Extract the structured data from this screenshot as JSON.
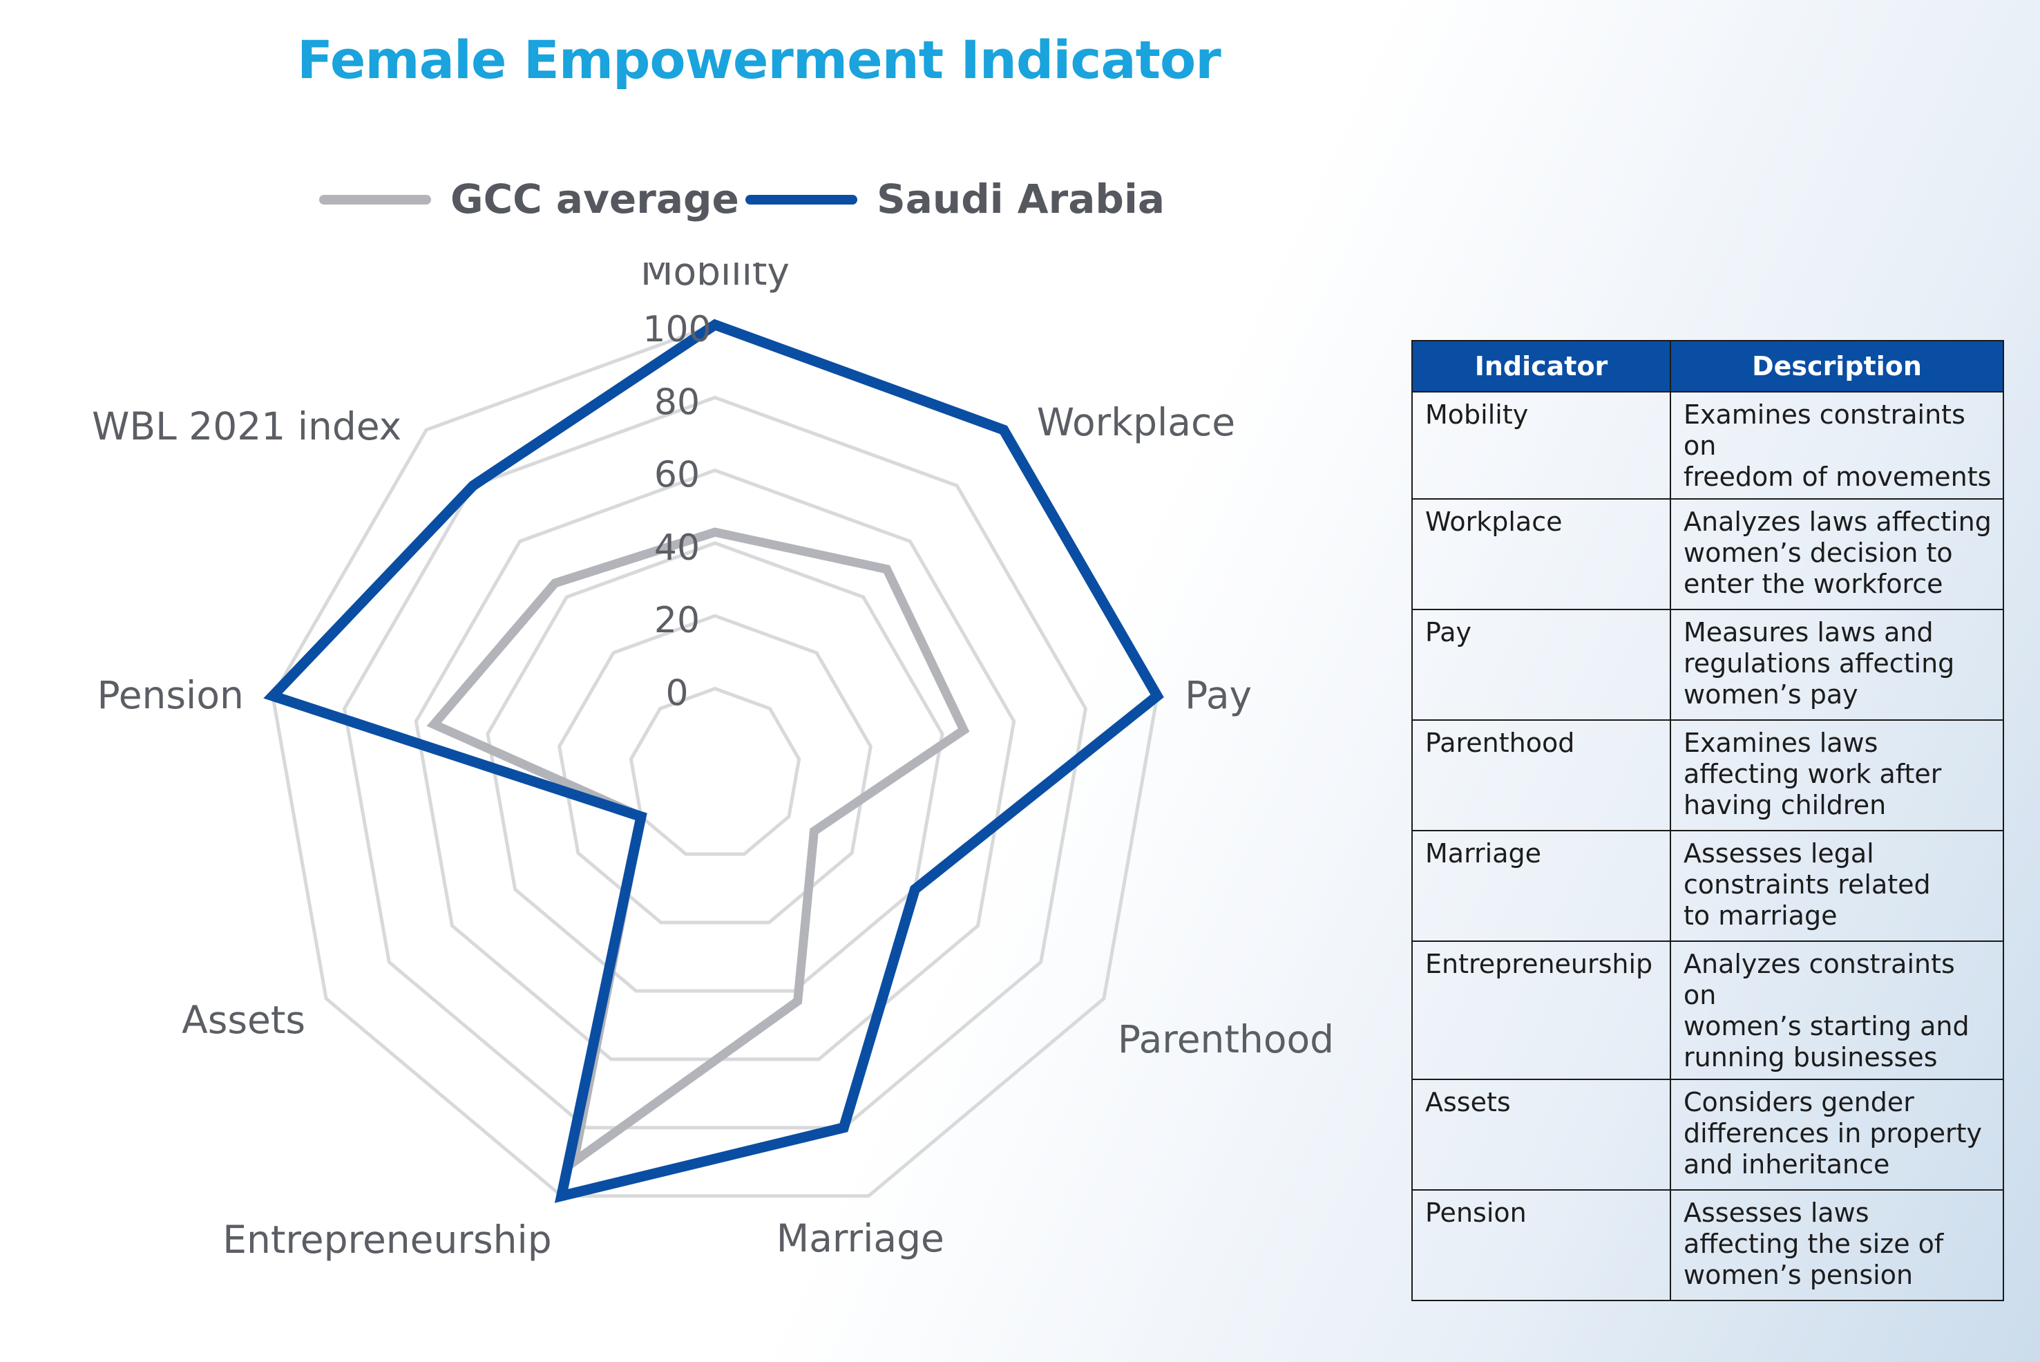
{
  "title": "Female Empowerment Indicator",
  "legend": [
    {
      "label": "GCC average",
      "color": "#b3b4b9"
    },
    {
      "label": "Saudi Arabia",
      "color": "#0a4ea3"
    }
  ],
  "chart_data": {
    "type": "radar",
    "title": "Female Empowerment Indicator",
    "axes": [
      "Mobility",
      "Workplace",
      "Pay",
      "Parenthood",
      "Marriage",
      "Entrepreneurship",
      "Assets",
      "Pension",
      "WBL 2021 index"
    ],
    "ticks": [
      "0",
      "20",
      "40",
      "60",
      "80",
      "100"
    ],
    "range": [
      0,
      100
    ],
    "grid": true,
    "legend_position": "top",
    "series": [
      {
        "name": "GCC average",
        "color": "#b3b4b9",
        "values": [
          43,
          50,
          46,
          8,
          43,
          90,
          0,
          55,
          45
        ]
      },
      {
        "name": "Saudi Arabia",
        "color": "#0a4ea3",
        "values": [
          100,
          100,
          100,
          40,
          80,
          100,
          0,
          100,
          80
        ]
      }
    ]
  },
  "table": {
    "headers": [
      "Indicator",
      "Description"
    ],
    "rows": [
      {
        "name": "Mobility",
        "lines": [
          "Examines constraints on",
          "freedom of movements"
        ]
      },
      {
        "name": "Workplace",
        "lines": [
          "Analyzes laws affecting",
          "women’s decision to",
          "enter the workforce"
        ]
      },
      {
        "name": "Pay",
        "lines": [
          "Measures laws and",
          "regulations affecting",
          "women’s pay"
        ]
      },
      {
        "name": "Parenthood",
        "lines": [
          "Examines laws",
          "affecting work after",
          "having children"
        ]
      },
      {
        "name": "Marriage",
        "lines": [
          "Assesses legal",
          "constraints related",
          "to marriage"
        ]
      },
      {
        "name": "Entrepreneurship",
        "lines": [
          "Analyzes constraints on",
          "women’s starting and",
          "running businesses"
        ]
      },
      {
        "name": "Assets",
        "lines": [
          "Considers gender",
          "differences in property",
          "and inheritance"
        ]
      },
      {
        "name": "Pension",
        "lines": [
          "Assesses laws",
          "affecting the size of",
          "women’s pension"
        ]
      }
    ]
  }
}
